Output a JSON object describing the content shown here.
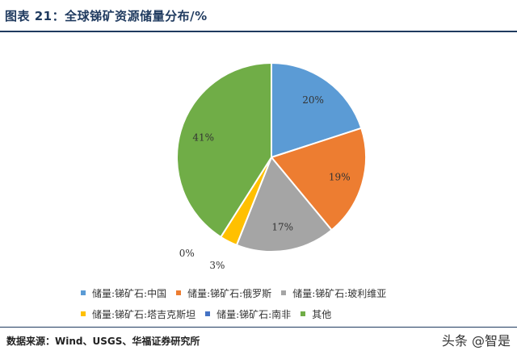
{
  "header": {
    "title": "图表 21：全球锑矿资源储量分布/%"
  },
  "chart_data": {
    "type": "pie",
    "title": "全球锑矿资源储量分布/%",
    "unit": "%",
    "slices": [
      {
        "label": "储量:锑矿石:中国",
        "value": 20,
        "display": "20%",
        "color": "#5b9bd5"
      },
      {
        "label": "储量:锑矿石:俄罗斯",
        "value": 19,
        "display": "19%",
        "color": "#ed7d31"
      },
      {
        "label": "储量:锑矿石:玻利维亚",
        "value": 17,
        "display": "17%",
        "color": "#a5a5a5"
      },
      {
        "label": "储量:锑矿石:塔吉克斯坦",
        "value": 3,
        "display": "3%",
        "color": "#ffc000"
      },
      {
        "label": "储量:锑矿石:南非",
        "value": 0,
        "display": "0%",
        "color": "#4472c4"
      },
      {
        "label": "其他",
        "value": 41,
        "display": "41%",
        "color": "#70ad47"
      }
    ],
    "legend_position": "bottom"
  },
  "footer": {
    "source": "数据来源：Wind、USGS、华福证券研究所",
    "watermark": "头条 @智是"
  }
}
